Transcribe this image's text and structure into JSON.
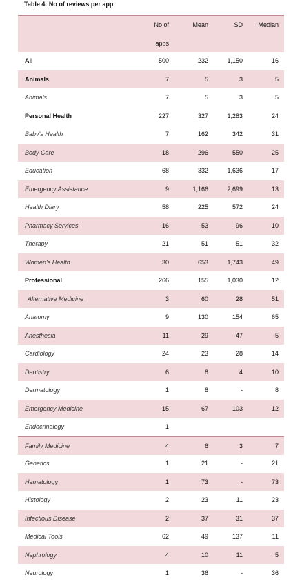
{
  "title": "Table 4: No of reviews per app",
  "table": {
    "columns": [
      "No of apps",
      "Mean",
      "SD",
      "Median"
    ],
    "rows": [
      {
        "label": "All",
        "style": "bold",
        "cells": [
          "500",
          "232",
          "1,150",
          "16"
        ]
      },
      {
        "label": "Animals",
        "style": "bold",
        "cells": [
          "7",
          "5",
          "3",
          "5"
        ]
      },
      {
        "label": "Animals",
        "style": "italic",
        "cells": [
          "7",
          "5",
          "3",
          "5"
        ]
      },
      {
        "label": "Personal Health",
        "style": "bold",
        "cells": [
          "227",
          "327",
          "1,283",
          "24"
        ]
      },
      {
        "label": "Baby's Health",
        "style": "italic",
        "cells": [
          "7",
          "162",
          "342",
          "31"
        ]
      },
      {
        "label": "Body Care",
        "style": "italic",
        "cells": [
          "18",
          "296",
          "550",
          "25"
        ]
      },
      {
        "label": "Education",
        "style": "italic",
        "cells": [
          "68",
          "332",
          "1,636",
          "17"
        ]
      },
      {
        "label": "Emergency Assistance",
        "style": "italic",
        "cells": [
          "9",
          "1,166",
          "2,699",
          "13"
        ]
      },
      {
        "label": "Health Diary",
        "style": "italic",
        "cells": [
          "58",
          "225",
          "572",
          "24"
        ]
      },
      {
        "label": "Pharmacy Services",
        "style": "italic",
        "cells": [
          "16",
          "53",
          "96",
          "10"
        ]
      },
      {
        "label": "Therapy",
        "style": "italic",
        "cells": [
          "21",
          "51",
          "51",
          "32"
        ]
      },
      {
        "label": "Women's Health",
        "style": "italic",
        "cells": [
          "30",
          "653",
          "1,743",
          "49"
        ]
      },
      {
        "label": "Professional",
        "style": "bold",
        "cells": [
          "266",
          "155",
          "1,030",
          "12"
        ]
      },
      {
        "label": "Alternative Medicine",
        "style": "italic",
        "cells": [
          "3",
          "60",
          "28",
          "51"
        ]
      },
      {
        "label": "Anatomy",
        "style": "italic",
        "cells": [
          "9",
          "130",
          "154",
          "65"
        ]
      },
      {
        "label": "Anesthesia",
        "style": "italic",
        "cells": [
          "11",
          "29",
          "47",
          "5"
        ]
      },
      {
        "label": "Cardiology",
        "style": "italic",
        "cells": [
          "24",
          "23",
          "28",
          "14"
        ]
      },
      {
        "label": "Dentistry",
        "style": "italic",
        "cells": [
          "6",
          "8",
          "4",
          "10"
        ]
      },
      {
        "label": "Dermatology",
        "style": "italic",
        "cells": [
          "1",
          "8",
          "-",
          "8"
        ]
      },
      {
        "label": "Emergency Medicine",
        "style": "italic",
        "cells": [
          "15",
          "67",
          "103",
          "12"
        ]
      },
      {
        "label": "Endocrinology",
        "style": "italic",
        "cells": [
          "1",
          null,
          null,
          null
        ]
      },
      {
        "label": "Family Medicine",
        "style": "italic",
        "cells": [
          "4",
          "6",
          "3",
          "7"
        ]
      },
      {
        "label": "Genetics",
        "style": "italic",
        "cells": [
          "1",
          "21",
          "-",
          "21"
        ]
      },
      {
        "label": "Hematology",
        "style": "italic",
        "cells": [
          "1",
          "73",
          "-",
          "73"
        ]
      },
      {
        "label": "Histology",
        "style": "italic",
        "cells": [
          "2",
          "23",
          "11",
          "23"
        ]
      },
      {
        "label": "Infectious Disease",
        "style": "italic",
        "cells": [
          "2",
          "37",
          "31",
          "37"
        ]
      },
      {
        "label": "Medical Tools",
        "style": "italic",
        "cells": [
          "62",
          "49",
          "137",
          "11"
        ]
      },
      {
        "label": "Nephrology",
        "style": "italic",
        "cells": [
          "4",
          "10",
          "11",
          "5"
        ]
      },
      {
        "label": "Neurology",
        "style": "italic",
        "cells": [
          "1",
          "36",
          "-",
          "36"
        ]
      }
    ]
  }
}
